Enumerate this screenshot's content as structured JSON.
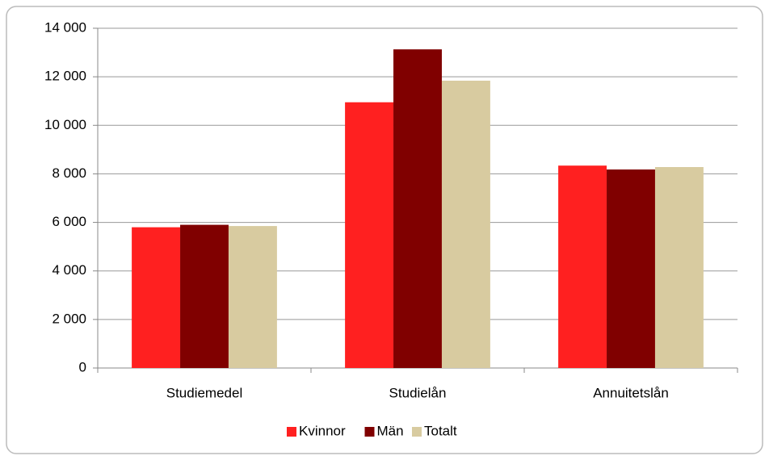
{
  "chart_data": {
    "type": "bar",
    "categories": [
      "Studiemedel",
      "Studielån",
      "Annuitetslån"
    ],
    "series": [
      {
        "name": "Kvinnor",
        "color": "#ff2020",
        "values": [
          5800,
          10950,
          8340
        ]
      },
      {
        "name": "Män",
        "color": "#800000",
        "values": [
          5900,
          13130,
          8180
        ]
      },
      {
        "name": "Totalt",
        "color": "#d8cba0",
        "values": [
          5850,
          11840,
          8280
        ]
      }
    ],
    "ylim": [
      0,
      14000
    ],
    "yticks": [
      0,
      {
        "value": 2000,
        "label": "2 000"
      },
      {
        "value": 4000,
        "label": "4 000"
      },
      {
        "value": 6000,
        "label": "6 000"
      },
      {
        "value": 8000,
        "label": "8 000"
      },
      {
        "value": 10000,
        "label": "10 000"
      },
      {
        "value": 12000,
        "label": "12 000"
      },
      {
        "value": 14000,
        "label": "14 000"
      }
    ],
    "grid": true,
    "legend": "bottom"
  }
}
